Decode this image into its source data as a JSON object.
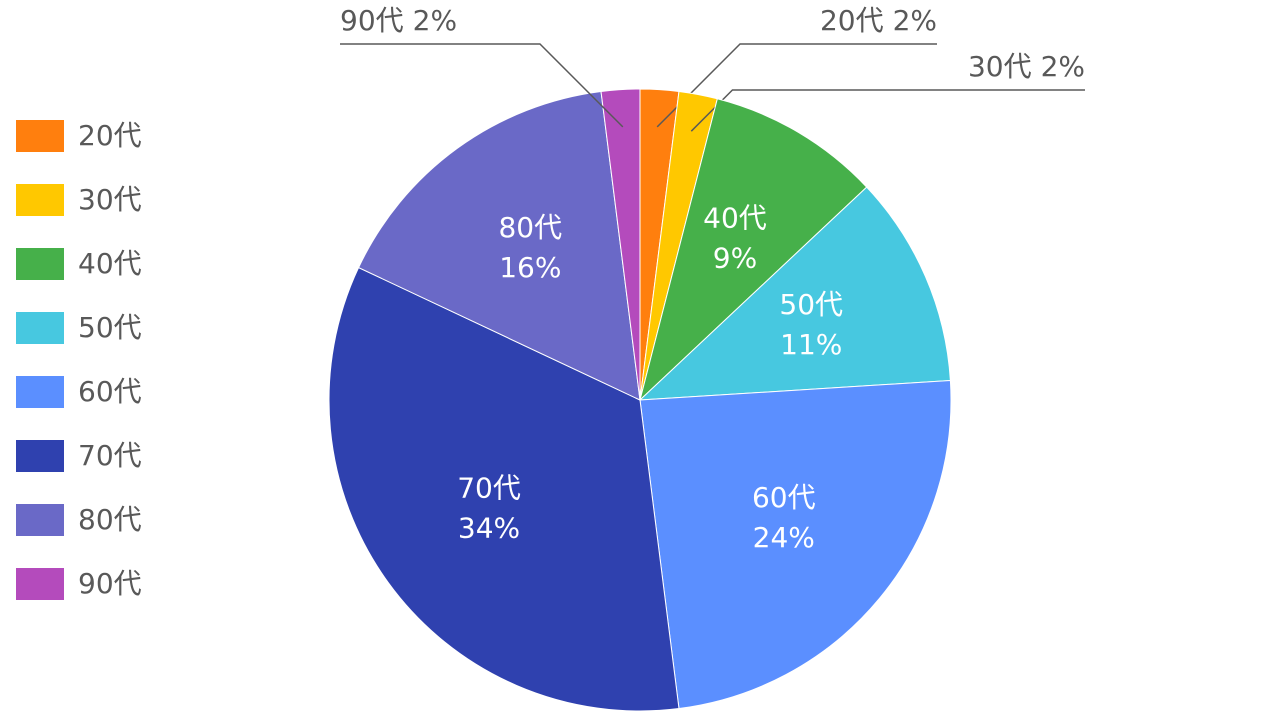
{
  "chart_data": {
    "type": "pie",
    "categories": [
      "20代",
      "30代",
      "40代",
      "50代",
      "60代",
      "70代",
      "80代",
      "90代"
    ],
    "values": [
      2,
      2,
      9,
      11,
      24,
      34,
      16,
      2
    ],
    "value_labels": [
      "2%",
      "2%",
      "9%",
      "11%",
      "24%",
      "34%",
      "16%",
      "2%"
    ],
    "colors": [
      "#ff7f0e",
      "#ffc800",
      "#46b04a",
      "#47c8e0",
      "#5b8fff",
      "#2f41af",
      "#6a69c7",
      "#b44bbc"
    ],
    "legend": "left"
  }
}
